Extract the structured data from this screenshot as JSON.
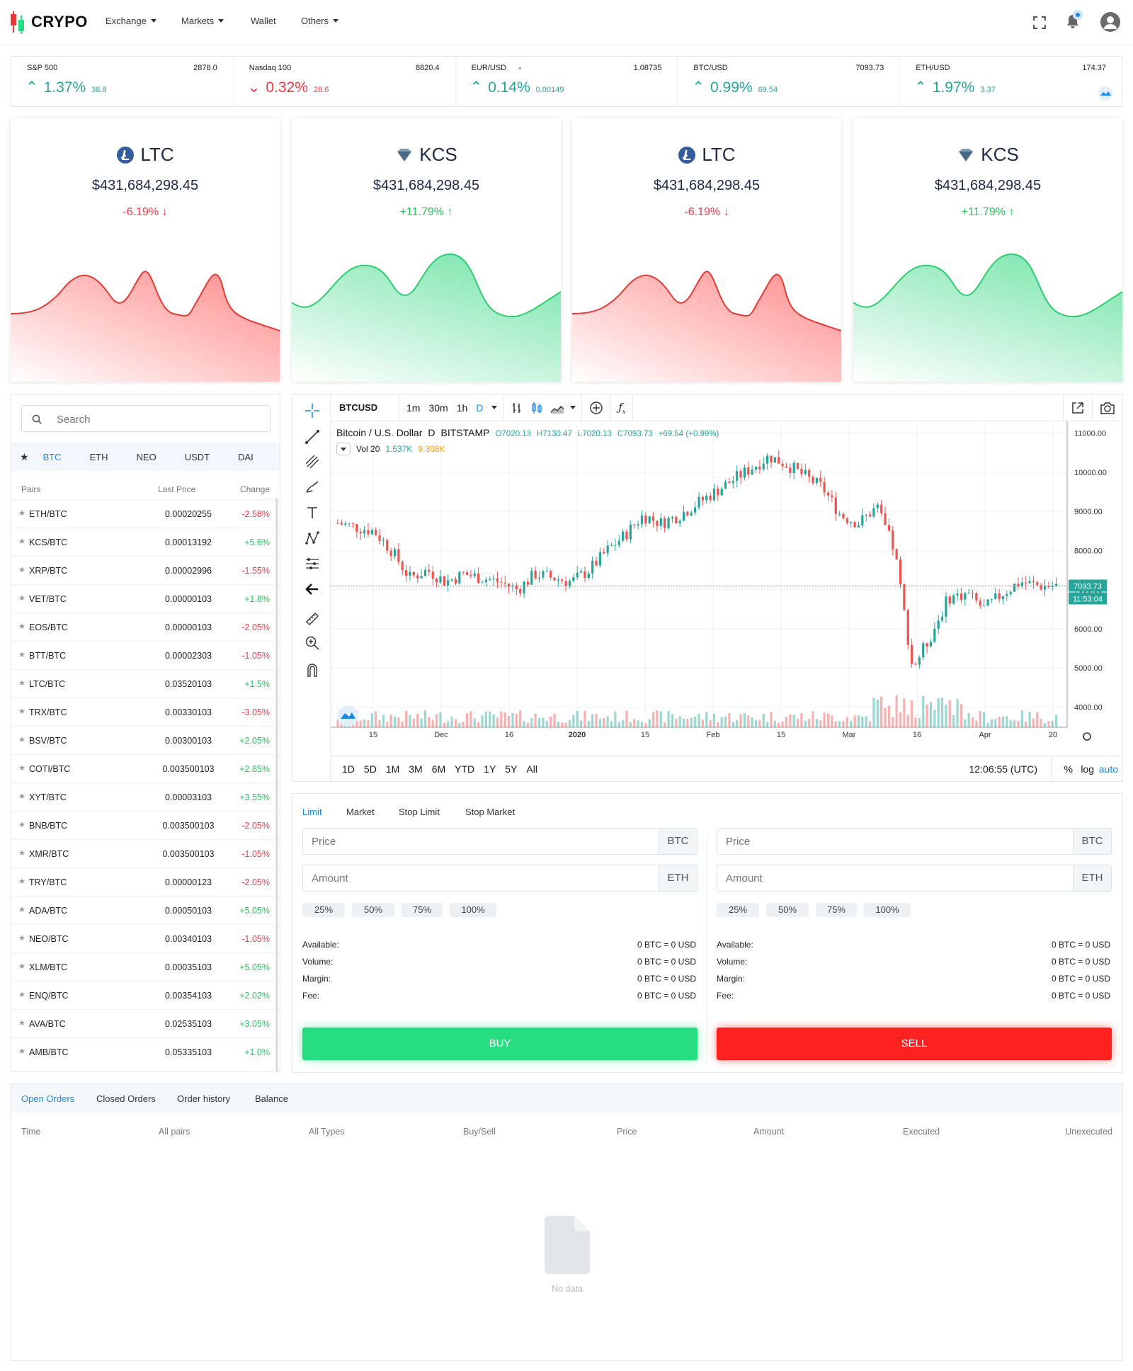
{
  "header": {
    "logo": "CRYPO",
    "nav": [
      {
        "label": "Exchange",
        "dropdown": true
      },
      {
        "label": "Markets",
        "dropdown": true
      },
      {
        "label": "Wallet",
        "dropdown": false
      },
      {
        "label": "Others",
        "dropdown": true
      }
    ]
  },
  "ticker": [
    {
      "name": "S&P 500",
      "price": "2878.0",
      "change": "1.37%",
      "delta": "38.8",
      "dir": "up"
    },
    {
      "name": "Nasdaq 100",
      "price": "8820.4",
      "change": "0.32%",
      "delta": "28.6",
      "dir": "down"
    },
    {
      "name": "EUR/USD",
      "price": "1.08735",
      "change": "0.14%",
      "delta": "0.00149",
      "dir": "up"
    },
    {
      "name": "BTC/USD",
      "price": "7093.73",
      "change": "0.99%",
      "delta": "69.54",
      "dir": "up"
    },
    {
      "name": "ETH/USD",
      "price": "174.37",
      "change": "1.97%",
      "delta": "3.37",
      "dir": "up"
    }
  ],
  "cards": [
    {
      "symbol": "LTC",
      "value": "$431,684,298.45",
      "change": "-6.19%",
      "dir": "down",
      "color": "#f23645"
    },
    {
      "symbol": "KCS",
      "value": "$431,684,298.45",
      "change": "+11.79%",
      "dir": "up",
      "color": "#22c55e"
    },
    {
      "symbol": "LTC",
      "value": "$431,684,298.45",
      "change": "-6.19%",
      "dir": "down",
      "color": "#f23645"
    },
    {
      "symbol": "KCS",
      "value": "$431,684,298.45",
      "change": "+11.79%",
      "dir": "up",
      "color": "#22c55e"
    }
  ],
  "pairs": {
    "search_placeholder": "Search",
    "tabs": [
      "BTC",
      "ETH",
      "NEO",
      "USDT",
      "DAI"
    ],
    "active_tab": "BTC",
    "columns": [
      "Pairs",
      "Last Price",
      "Change"
    ],
    "rows": [
      {
        "pair": "ETH/BTC",
        "price": "0.00020255",
        "change": "-2.58%"
      },
      {
        "pair": "KCS/BTC",
        "price": "0.00013192",
        "change": "+5.6%"
      },
      {
        "pair": "XRP/BTC",
        "price": "0.00002996",
        "change": "-1.55%"
      },
      {
        "pair": "VET/BTC",
        "price": "0.00000103",
        "change": "+1.8%"
      },
      {
        "pair": "EOS/BTC",
        "price": "0.00000103",
        "change": "-2.05%"
      },
      {
        "pair": "BTT/BTC",
        "price": "0.00002303",
        "change": "-1.05%"
      },
      {
        "pair": "LTC/BTC",
        "price": "0.03520103",
        "change": "+1.5%"
      },
      {
        "pair": "TRX/BTC",
        "price": "0.00330103",
        "change": "-3.05%"
      },
      {
        "pair": "BSV/BTC",
        "price": "0.00300103",
        "change": "+2.05%"
      },
      {
        "pair": "COTI/BTC",
        "price": "0.003500103",
        "change": "+2.85%"
      },
      {
        "pair": "XYT/BTC",
        "price": "0.00003103",
        "change": "+3.55%"
      },
      {
        "pair": "BNB/BTC",
        "price": "0.003500103",
        "change": "-2.05%"
      },
      {
        "pair": "XMR/BTC",
        "price": "0.003500103",
        "change": "-1.05%"
      },
      {
        "pair": "TRY/BTC",
        "price": "0.00000123",
        "change": "-2.05%"
      },
      {
        "pair": "ADA/BTC",
        "price": "0.00050103",
        "change": "+5.05%"
      },
      {
        "pair": "NEO/BTC",
        "price": "0.00340103",
        "change": "-1.05%"
      },
      {
        "pair": "XLM/BTC",
        "price": "0.00035103",
        "change": "+5.05%"
      },
      {
        "pair": "ENQ/BTC",
        "price": "0.00354103",
        "change": "+2.02%"
      },
      {
        "pair": "AVA/BTC",
        "price": "0.02535103",
        "change": "+3.05%"
      },
      {
        "pair": "AMB/BTC",
        "price": "0.05335103",
        "change": "+1.0%"
      }
    ]
  },
  "chart": {
    "symbol": "BTCUSD",
    "intervals": [
      "1m",
      "30m",
      "1h",
      "D"
    ],
    "active_interval": "D",
    "title": "Bitcoin / U.S. Dollar",
    "period": "D",
    "exchange": "BITSTAMP",
    "ohlc": {
      "o": "O7020.13",
      "h": "H7130.47",
      "l": "L7020.13",
      "c": "C7093.73",
      "chg": "+69.54 (+0.99%)"
    },
    "volume": {
      "label": "Vol 20",
      "v1": "1.537K",
      "v2": "9.308K"
    },
    "last_price": "7093.73",
    "countdown": "11:53:04",
    "ranges": [
      "1D",
      "5D",
      "1M",
      "3M",
      "6M",
      "YTD",
      "1Y",
      "5Y",
      "All"
    ],
    "time": "12:06:55 (UTC)",
    "opts": [
      "%",
      "log",
      "auto"
    ],
    "colors": {
      "up": "#26a69a",
      "down": "#ef5350"
    }
  },
  "chart_data": {
    "type": "candlestick",
    "series": [
      {
        "name": "Bitcoin / U.S. Dollar",
        "values": [
          8700,
          8600,
          8500,
          8000,
          7300,
          7500,
          7200,
          7400,
          7300,
          7200,
          7000,
          7400,
          7300,
          7200,
          7500,
          8000,
          8400,
          8900,
          8700,
          8900,
          9200,
          9500,
          9800,
          10100,
          10400,
          10200,
          9900,
          9600,
          8900,
          8700,
          9100,
          8000,
          5000,
          5800,
          6800,
          6900,
          6500,
          6900,
          7200,
          7100,
          7093.73
        ]
      }
    ],
    "yticks": [
      "11000.00",
      "10000.00",
      "9000.00",
      "8000.00",
      "7000.00",
      "6000.00",
      "5000.00",
      "4000.00"
    ],
    "xticks": [
      "15",
      "Dec",
      "16",
      "2020",
      "15",
      "Feb",
      "15",
      "Mar",
      "16",
      "Apr",
      "20"
    ],
    "ylim": [
      3700,
      11300
    ]
  },
  "order": {
    "tabs": [
      "Limit",
      "Market",
      "Stop Limit",
      "Stop Market"
    ],
    "active_tab": "Limit",
    "buy": {
      "price_placeholder": "Price",
      "price_unit": "BTC",
      "amount_placeholder": "Amount",
      "amount_unit": "ETH",
      "button": "BUY"
    },
    "sell": {
      "price_placeholder": "Price",
      "price_unit": "BTC",
      "amount_placeholder": "Amount",
      "amount_unit": "ETH",
      "button": "SELL"
    },
    "percents": [
      "25%",
      "50%",
      "75%",
      "100%"
    ],
    "info": [
      {
        "label": "Available:",
        "value": "0 BTC = 0 USD"
      },
      {
        "label": "Volume:",
        "value": "0 BTC = 0 USD"
      },
      {
        "label": "Margin:",
        "value": "0 BTC = 0 USD"
      },
      {
        "label": "Fee:",
        "value": "0 BTC = 0 USD"
      }
    ],
    "colors": {
      "buy": "#26de81",
      "sell": "#ff2020"
    }
  },
  "orders": {
    "tabs": [
      "Open Orders",
      "Closed Orders",
      "Order history",
      "Balance"
    ],
    "active_tab": "Open Orders",
    "columns": [
      "Time",
      "All pairs",
      "All Types",
      "Buy/Sell",
      "Price",
      "Amount",
      "Executed",
      "Unexecuted"
    ],
    "empty_text": "No data"
  }
}
